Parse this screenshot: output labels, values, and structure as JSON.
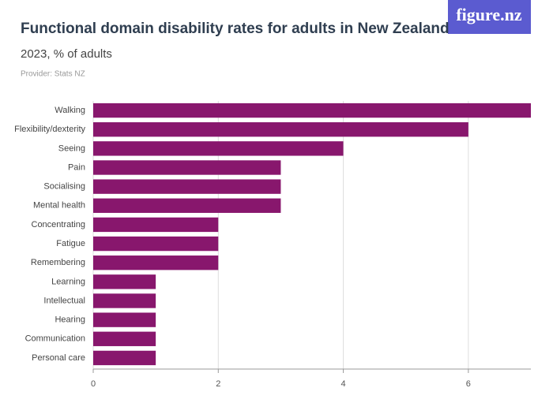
{
  "logo": "figure.nz",
  "chart_data": {
    "type": "bar",
    "orientation": "horizontal",
    "title": "Functional domain disability rates for adults in New Zealand",
    "subtitle": "2023, % of adults",
    "provider": "Provider: Stats NZ",
    "categories": [
      "Walking",
      "Flexibility/dexterity",
      "Seeing",
      "Pain",
      "Socialising",
      "Mental health",
      "Concentrating",
      "Fatigue",
      "Remembering",
      "Learning",
      "Intellectual",
      "Hearing",
      "Communication",
      "Personal care"
    ],
    "values": [
      7,
      6,
      4,
      3,
      3,
      3,
      2,
      2,
      2,
      1,
      1,
      1,
      1,
      1
    ],
    "color": "#88176d",
    "xlim": [
      0,
      7
    ],
    "xticks": [
      0,
      2,
      4,
      6
    ],
    "grid": true
  }
}
